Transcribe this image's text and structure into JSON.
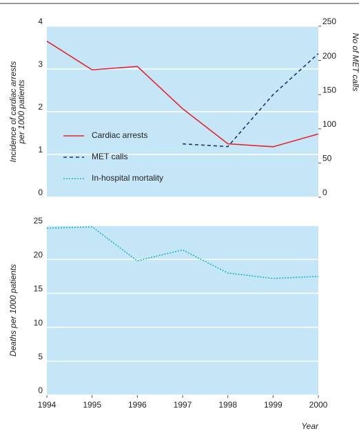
{
  "chart_data": [
    {
      "type": "line",
      "ylabel": [
        "Incidence of cardiac arrests",
        "per 1000 patients"
      ],
      "y2label": "No of MET calls",
      "x": [
        1994,
        1995,
        1996,
        1997,
        1998,
        1999,
        2000
      ],
      "xlim": [
        1994,
        2000
      ],
      "ylim": [
        0,
        4
      ],
      "yticks": [
        0,
        1,
        2,
        3,
        4
      ],
      "y2lim": [
        0,
        250
      ],
      "y2ticks": [
        0,
        50,
        100,
        150,
        200,
        250
      ],
      "grid": true,
      "background": "#c5e6f7",
      "series": [
        {
          "name": "Cardiac arrests",
          "color": "#e8202a",
          "dash": "solid",
          "values": [
            3.65,
            2.98,
            3.06,
            2.07,
            1.25,
            1.18,
            1.48
          ]
        },
        {
          "name": "MET calls",
          "color": "#1f2f7a",
          "dash": "dashed",
          "axis": "y2",
          "values": [
            null,
            null,
            null,
            78,
            74,
            150,
            210
          ]
        }
      ]
    },
    {
      "type": "line",
      "ylabel": [
        "Deaths per 1000 patients"
      ],
      "xlabel": "Year",
      "x": [
        1994,
        1995,
        1996,
        1997,
        1998,
        1999,
        2000
      ],
      "xlim": [
        1994,
        2000
      ],
      "xticks": [
        1994,
        1995,
        1996,
        1997,
        1998,
        1999,
        2000
      ],
      "ylim": [
        0,
        25
      ],
      "yticks": [
        0,
        5,
        10,
        15,
        20,
        25
      ],
      "grid": true,
      "background": "#c5e6f7",
      "series": [
        {
          "name": "In-hospital mortality",
          "color": "#1bb3c4",
          "dash": "dotted",
          "values": [
            24.6,
            24.8,
            19.8,
            21.4,
            18.0,
            17.2,
            17.5
          ]
        }
      ]
    }
  ]
}
